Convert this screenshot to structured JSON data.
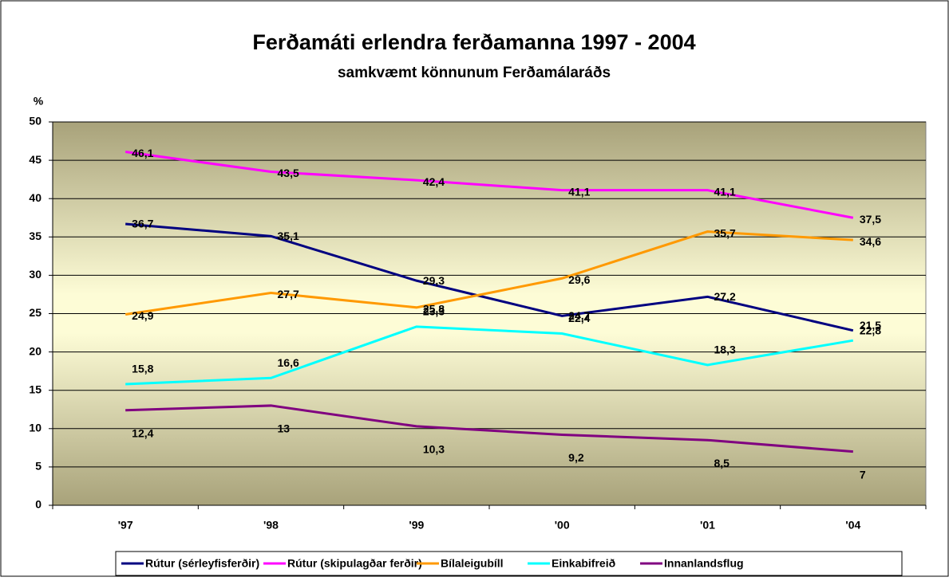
{
  "chart_data": {
    "type": "line",
    "title": "Ferðamáti erlendra ferðamanna 1997 - 2004",
    "subtitle": "samkvæmt könnunum Ferðamálaráðs",
    "y_label": "%",
    "categories": [
      "'97",
      "'98",
      "'99",
      "'00",
      "'01",
      "'04"
    ],
    "ylim": [
      0,
      50
    ],
    "yticks": [
      0,
      5,
      10,
      15,
      20,
      25,
      30,
      35,
      40,
      45,
      50
    ],
    "grid": true,
    "legend": "bottom",
    "series": [
      {
        "name": "Rútur (sérleyfisferðir)",
        "color": "#000080",
        "values": [
          36.7,
          35.1,
          29.3,
          24.7,
          27.2,
          22.8
        ],
        "value_labels": [
          "36,7",
          "35,1",
          "29,3",
          "24,7",
          "27,2",
          "22,8"
        ]
      },
      {
        "name": "Rútur (skipulagðar ferðir)",
        "color": "#ff00ff",
        "values": [
          46.1,
          43.5,
          42.4,
          41.1,
          41.1,
          37.5
        ],
        "value_labels": [
          "46,1",
          "43,5",
          "42,4",
          "41,1",
          "41,1",
          "37,5"
        ]
      },
      {
        "name": "Bílaleigubíll",
        "color": "#ff9900",
        "values": [
          24.9,
          27.7,
          25.8,
          29.6,
          35.7,
          34.6
        ],
        "value_labels": [
          "24,9",
          "27,7",
          "25,8",
          "29,6",
          "35,7",
          "34,6"
        ]
      },
      {
        "name": "Einkabifreið",
        "color": "#00ffff",
        "values": [
          15.8,
          16.6,
          23.3,
          22.4,
          18.3,
          21.5
        ],
        "value_labels": [
          "15,8",
          "16,6",
          "23,3",
          "22,4",
          "18,3",
          "21,5"
        ]
      },
      {
        "name": "Innanlandsflug",
        "color": "#800080",
        "values": [
          12.4,
          13,
          10.3,
          9.2,
          8.5,
          7
        ],
        "value_labels": [
          "12,4",
          "13",
          "10,3",
          "9,2",
          "8,5",
          "7"
        ]
      }
    ]
  }
}
